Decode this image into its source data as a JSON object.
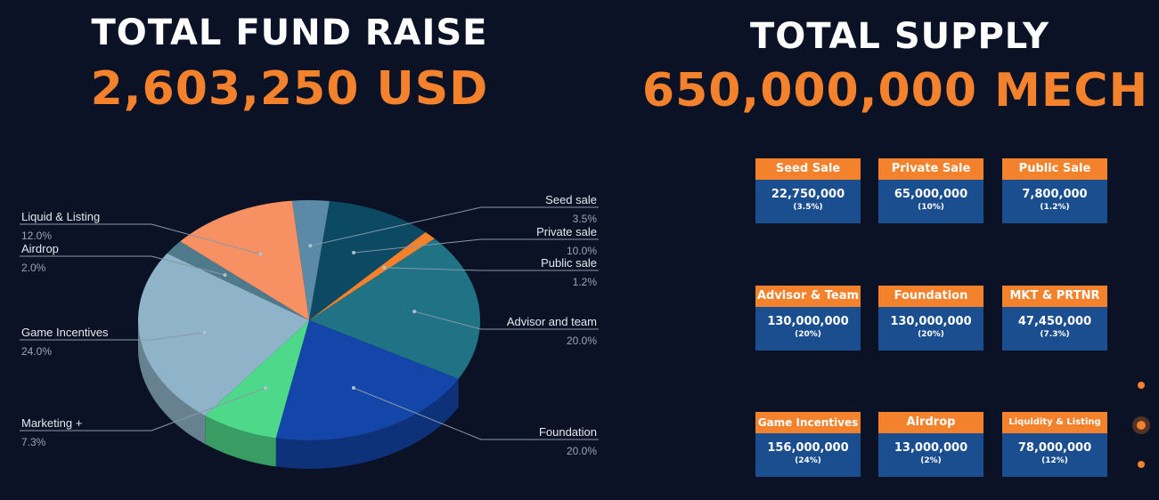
{
  "fund": {
    "title": "TOTAL FUND RAISE",
    "value": "2,603,250 USD"
  },
  "supply": {
    "title": "TOTAL SUPPLY",
    "value": "650,000,000 MECH"
  },
  "colors": {
    "background": "#0b1226",
    "accent": "#f4812c",
    "card_body": "#1a4e8e"
  },
  "chart_data": {
    "type": "pie",
    "title": "",
    "labels": [
      "Seed sale",
      "Private sale",
      "Public sale",
      "Advisor and team",
      "Foundation",
      "Marketing +",
      "Game Incentives",
      "Airdrop",
      "Liquid & Listing"
    ],
    "values": [
      3.5,
      10.0,
      1.2,
      20.0,
      20.0,
      7.3,
      24.0,
      2.0,
      12.0
    ],
    "value_labels": [
      "3.5%",
      "10.0%",
      "1.2%",
      "20.0%",
      "20.0%",
      "7.3%",
      "24.0%",
      "2.0%",
      "12.0%"
    ],
    "colors": [
      "#5a8aa6",
      "#0c4a63",
      "#f4812c",
      "#1f7384",
      "#1346a8",
      "#4ed98a",
      "#8fb3c8",
      "#4e7a8c",
      "#f79164"
    ],
    "style": "3d"
  },
  "cards": [
    {
      "name": "Seed Sale",
      "value": "22,750,000",
      "pct": "(3.5%)"
    },
    {
      "name": "Private Sale",
      "value": "65,000,000",
      "pct": "(10%)"
    },
    {
      "name": "Public Sale",
      "value": "7,800,000",
      "pct": "(1.2%)"
    },
    {
      "name": "Advisor & Team",
      "value": "130,000,000",
      "pct": "(20%)"
    },
    {
      "name": "Foundation",
      "value": "130,000,000",
      "pct": "(20%)"
    },
    {
      "name": "MKT & PRTNR",
      "value": "47,450,000",
      "pct": "(7.3%)"
    },
    {
      "name": "Game Incentives",
      "value": "156,000,000",
      "pct": "(24%)"
    },
    {
      "name": "Airdrop",
      "value": "13,000,000",
      "pct": "(2%)"
    },
    {
      "name": "Liquidity & Listing",
      "value": "78,000,000",
      "pct": "(12%)"
    }
  ],
  "pagination": {
    "count": 3,
    "active_index": 1
  }
}
